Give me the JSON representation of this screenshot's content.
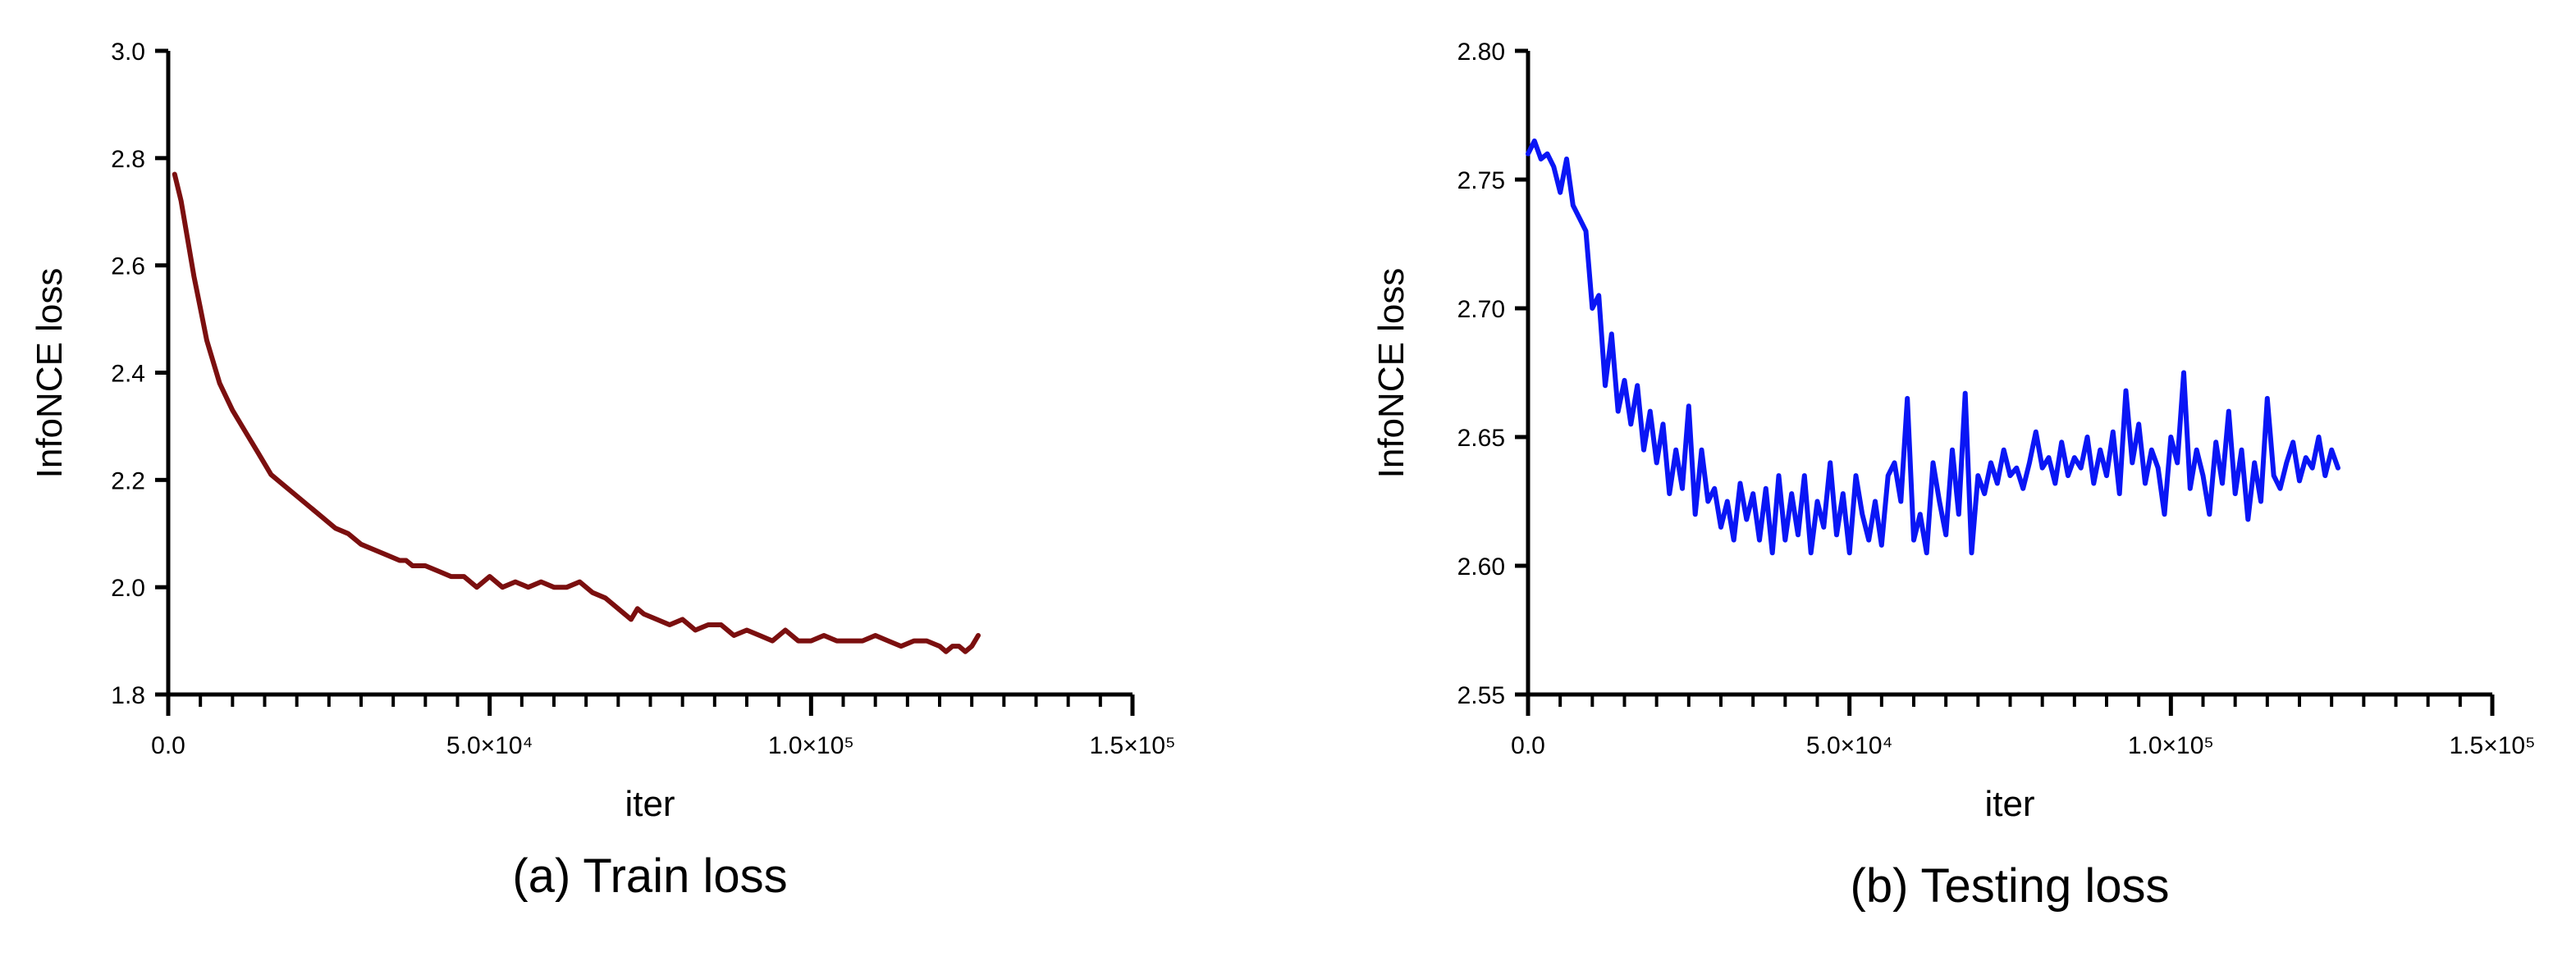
{
  "chart_data": [
    {
      "type": "line",
      "caption": "(a) Train loss",
      "xlabel": "iter",
      "ylabel": "InfoNCE loss",
      "xlim": [
        0,
        150000
      ],
      "ylim": [
        1.8,
        3.0
      ],
      "x_ticks": [
        0,
        50000,
        100000,
        150000
      ],
      "x_tick_labels": [
        "0.0",
        "5.0×10⁴",
        "1.0×10⁵",
        "1.5×10⁵"
      ],
      "y_ticks": [
        1.8,
        2.0,
        2.2,
        2.4,
        2.6,
        2.8,
        3.0
      ],
      "y_tick_labels": [
        "1.8",
        "2.0",
        "2.2",
        "2.4",
        "2.6",
        "2.8",
        "3.0"
      ],
      "grid": false,
      "color": "#7b0f0f",
      "series": [
        {
          "x": [
            1000,
            2000,
            3000,
            4000,
            5000,
            6000,
            8000,
            10000,
            12000,
            14000,
            16000,
            18000,
            20000,
            22000,
            24000,
            26000,
            28000,
            30000,
            32000,
            34000,
            36000,
            37000,
            38000,
            40000,
            42000,
            44000,
            46000,
            48000,
            50000,
            52000,
            54000,
            56000,
            58000,
            60000,
            62000,
            64000,
            66000,
            68000,
            70000,
            71000,
            72000,
            73000,
            74000,
            76000,
            78000,
            80000,
            82000,
            84000,
            86000,
            88000,
            90000,
            92000,
            94000,
            96000,
            98000,
            100000,
            102000,
            104000,
            106000,
            108000,
            110000,
            112000,
            114000,
            116000,
            118000,
            120000,
            121000,
            122000,
            123000,
            124000,
            125000,
            126000
          ],
          "y": [
            2.77,
            2.72,
            2.65,
            2.58,
            2.52,
            2.46,
            2.38,
            2.33,
            2.29,
            2.25,
            2.21,
            2.19,
            2.17,
            2.15,
            2.13,
            2.11,
            2.1,
            2.08,
            2.07,
            2.06,
            2.05,
            2.05,
            2.04,
            2.04,
            2.03,
            2.02,
            2.02,
            2.0,
            2.02,
            2.0,
            2.01,
            2.0,
            2.01,
            2.0,
            2.0,
            2.01,
            1.99,
            1.98,
            1.96,
            1.95,
            1.94,
            1.96,
            1.95,
            1.94,
            1.93,
            1.94,
            1.92,
            1.93,
            1.93,
            1.91,
            1.92,
            1.91,
            1.9,
            1.92,
            1.9,
            1.9,
            1.91,
            1.9,
            1.9,
            1.9,
            1.91,
            1.9,
            1.89,
            1.9,
            1.9,
            1.89,
            1.88,
            1.89,
            1.89,
            1.88,
            1.89,
            1.91
          ]
        }
      ]
    },
    {
      "type": "line",
      "caption": "(b) Testing loss",
      "xlabel": "iter",
      "ylabel": "InfoNCE loss",
      "xlim": [
        0,
        150000
      ],
      "ylim": [
        2.55,
        2.8
      ],
      "x_ticks": [
        0,
        50000,
        100000,
        150000
      ],
      "x_tick_labels": [
        "0.0",
        "5.0×10⁴",
        "1.0×10⁵",
        "1.5×10⁵"
      ],
      "y_ticks": [
        2.55,
        2.6,
        2.65,
        2.7,
        2.75,
        2.8
      ],
      "y_tick_labels": [
        "2.55",
        "2.60",
        "2.65",
        "2.70",
        "2.75",
        "2.80"
      ],
      "grid": false,
      "color": "#0a16f5",
      "series": [
        {
          "x": [
            0,
            1000,
            2000,
            3000,
            4000,
            5000,
            6000,
            7000,
            8000,
            9000,
            10000,
            11000,
            12000,
            13000,
            14000,
            15000,
            16000,
            17000,
            18000,
            19000,
            20000,
            21000,
            22000,
            23000,
            24000,
            25000,
            26000,
            27000,
            28000,
            29000,
            30000,
            31000,
            32000,
            33000,
            34000,
            35000,
            36000,
            37000,
            38000,
            39000,
            40000,
            41000,
            42000,
            43000,
            44000,
            45000,
            46000,
            47000,
            48000,
            49000,
            50000,
            51000,
            52000,
            53000,
            54000,
            55000,
            56000,
            57000,
            58000,
            59000,
            60000,
            61000,
            62000,
            63000,
            64000,
            65000,
            66000,
            67000,
            68000,
            69000,
            70000,
            71000,
            72000,
            73000,
            74000,
            75000,
            76000,
            77000,
            78000,
            79000,
            80000,
            81000,
            82000,
            83000,
            84000,
            85000,
            86000,
            87000,
            88000,
            89000,
            90000,
            91000,
            92000,
            93000,
            94000,
            95000,
            96000,
            97000,
            98000,
            99000,
            100000,
            101000,
            102000,
            103000,
            104000,
            105000,
            106000,
            107000,
            108000,
            109000,
            110000,
            111000,
            112000,
            113000,
            114000,
            115000,
            116000,
            117000,
            118000,
            119000,
            120000,
            121000,
            122000,
            123000,
            124000,
            125000,
            126000
          ],
          "y": [
            2.76,
            2.765,
            2.758,
            2.76,
            2.755,
            2.745,
            2.758,
            2.74,
            2.735,
            2.73,
            2.7,
            2.705,
            2.67,
            2.69,
            2.66,
            2.672,
            2.655,
            2.67,
            2.645,
            2.66,
            2.64,
            2.655,
            2.628,
            2.645,
            2.63,
            2.662,
            2.62,
            2.645,
            2.625,
            2.63,
            2.615,
            2.625,
            2.61,
            2.632,
            2.618,
            2.628,
            2.61,
            2.63,
            2.605,
            2.635,
            2.61,
            2.628,
            2.612,
            2.635,
            2.605,
            2.625,
            2.615,
            2.64,
            2.612,
            2.628,
            2.605,
            2.635,
            2.62,
            2.61,
            2.625,
            2.608,
            2.635,
            2.64,
            2.625,
            2.665,
            2.61,
            2.62,
            2.605,
            2.64,
            2.625,
            2.612,
            2.645,
            2.62,
            2.667,
            2.605,
            2.635,
            2.628,
            2.64,
            2.632,
            2.645,
            2.635,
            2.638,
            2.63,
            2.64,
            2.652,
            2.638,
            2.642,
            2.632,
            2.648,
            2.635,
            2.642,
            2.638,
            2.65,
            2.632,
            2.645,
            2.635,
            2.652,
            2.628,
            2.668,
            2.64,
            2.655,
            2.632,
            2.645,
            2.638,
            2.62,
            2.65,
            2.64,
            2.675,
            2.63,
            2.645,
            2.635,
            2.62,
            2.648,
            2.632,
            2.66,
            2.628,
            2.645,
            2.618,
            2.64,
            2.625,
            2.665,
            2.635,
            2.63,
            2.64,
            2.648,
            2.633,
            2.642,
            2.638,
            2.65,
            2.635,
            2.645,
            2.638
          ]
        }
      ]
    }
  ]
}
